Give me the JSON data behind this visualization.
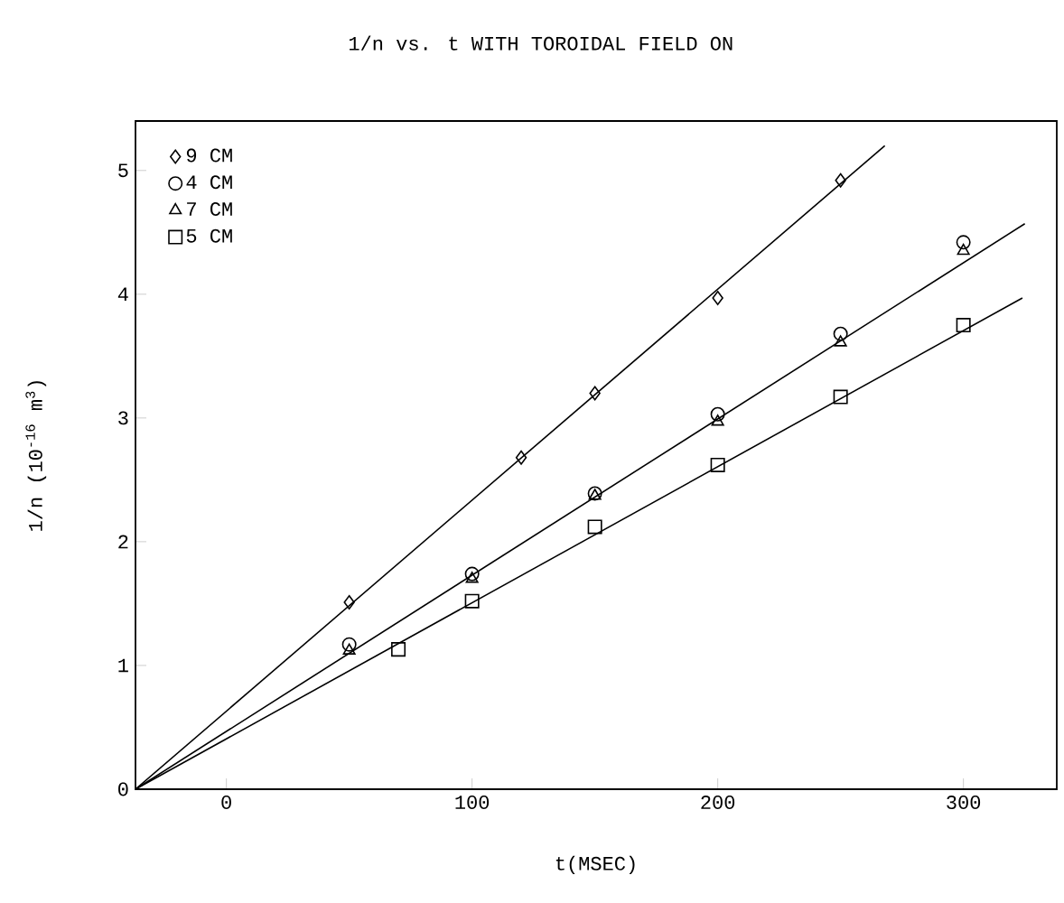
{
  "chart_data": {
    "type": "scatter",
    "title": "1/n vs. t WITH TOROIDAL FIELD ON",
    "xlabel": "t(MSEC)",
    "ylabel": "1/n (10$^{-16}$ m$^{3}$)",
    "xlim": [
      -37,
      338
    ],
    "ylim": [
      0,
      5.4
    ],
    "xticks": [
      0,
      100,
      200,
      300
    ],
    "yticks": [
      0,
      1,
      2,
      3,
      4,
      5
    ],
    "grid": false,
    "legend": "top left",
    "series": [
      {
        "name": "9 CM",
        "color": "#000000",
        "marker": "diamond",
        "x": [
          50,
          120,
          150,
          200,
          250
        ],
        "values": [
          1.51,
          2.68,
          3.2,
          3.97,
          4.92
        ]
      },
      {
        "name": "4 CM",
        "color": "#000000",
        "marker": "circle",
        "x": [
          50,
          100,
          150,
          200,
          250,
          300
        ],
        "values": [
          1.17,
          1.74,
          2.39,
          3.03,
          3.68,
          4.42
        ]
      },
      {
        "name": "7 CM",
        "color": "#000000",
        "marker": "triangle",
        "x": [
          50,
          100,
          150,
          200,
          250,
          300
        ],
        "values": [
          1.12,
          1.7,
          2.37,
          2.97,
          3.61,
          4.35
        ]
      },
      {
        "name": "5 CM",
        "color": "#000000",
        "marker": "square",
        "x": [
          70,
          100,
          150,
          200,
          250,
          300
        ],
        "values": [
          1.13,
          1.52,
          2.12,
          2.62,
          3.17,
          3.75
        ]
      },
      {
        "type": "line",
        "color": "#000000",
        "marker": "none",
        "line_style": "solid",
        "x": [
          -37,
          268
        ],
        "values": [
          0,
          5.2
        ]
      },
      {
        "type": "line",
        "color": "#000000",
        "marker": "none",
        "line_style": "solid",
        "x": [
          -37,
          325
        ],
        "values": [
          0,
          4.57
        ]
      },
      {
        "type": "line",
        "color": "#000000",
        "marker": "none",
        "line_style": "solid",
        "x": [
          -37,
          324
        ],
        "values": [
          0,
          3.97
        ]
      }
    ]
  }
}
